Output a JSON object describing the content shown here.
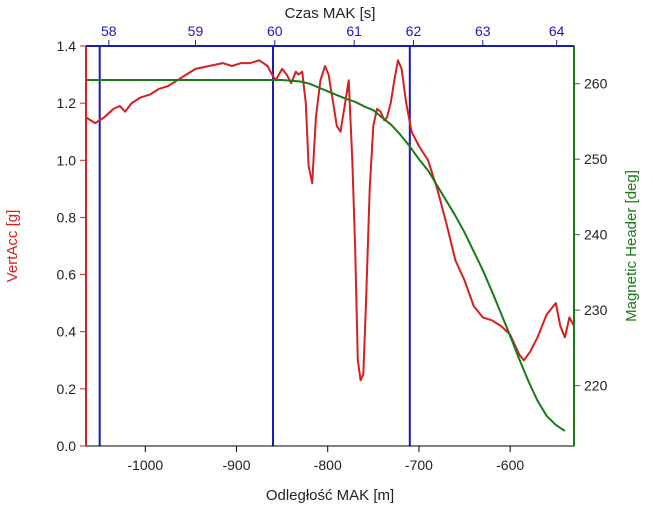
{
  "chart_data": {
    "type": "line",
    "top_axis": {
      "label": "Czas MAK [s]",
      "ticks": [
        58,
        59,
        60,
        61,
        62,
        63,
        64
      ],
      "ticks_at_bottom_x": [
        -1040,
        -945,
        -858,
        -771,
        -706,
        -630,
        -549
      ],
      "color": "#1a1ab4"
    },
    "x_axis": {
      "label": "Odległość MAK [m]",
      "range": [
        -1065,
        -530
      ],
      "ticks": [
        -1000,
        -900,
        -800,
        -700,
        -600
      ]
    },
    "y_left": {
      "label": "VertAcc [g]",
      "range": [
        0,
        1.4
      ],
      "ticks": [
        0.0,
        0.2,
        0.4,
        0.6,
        0.8,
        1.0,
        1.2,
        1.4
      ],
      "tick_labels": [
        "0.0",
        "0.2",
        "0.4",
        "0.6",
        "0.8",
        "1.0",
        "1.2",
        "1.4"
      ],
      "color": "#d42020"
    },
    "y_right": {
      "label": "Magnetic Header [deg]",
      "range": [
        212,
        265
      ],
      "ticks": [
        220,
        230,
        240,
        250,
        260
      ],
      "color": "#1a7a1a"
    },
    "vertical_markers": {
      "x": [
        -1050,
        -860,
        -710
      ],
      "color": "#1a1ab4"
    },
    "series": [
      {
        "axis": "left",
        "color": "#d42020",
        "x": [
          -1065,
          -1055,
          -1045,
          -1035,
          -1028,
          -1022,
          -1015,
          -1005,
          -995,
          -985,
          -975,
          -965,
          -955,
          -945,
          -930,
          -915,
          -905,
          -895,
          -885,
          -875,
          -866,
          -861,
          -857,
          -850,
          -845,
          -840,
          -835,
          -832,
          -828,
          -824,
          -821,
          -817,
          -813,
          -808,
          -803,
          -799,
          -795,
          -790,
          -786,
          -781,
          -777,
          -773,
          -770,
          -767,
          -764,
          -761,
          -758,
          -754,
          -750,
          -746,
          -742,
          -738,
          -735,
          -731,
          -727,
          -723,
          -719,
          -714,
          -708,
          -700,
          -690,
          -680,
          -670,
          -660,
          -650,
          -640,
          -630,
          -620,
          -610,
          -600,
          -590,
          -585,
          -578,
          -570,
          -560,
          -550,
          -545,
          -540,
          -535,
          -530
        ],
        "y": [
          1.15,
          1.13,
          1.15,
          1.18,
          1.19,
          1.17,
          1.2,
          1.22,
          1.23,
          1.25,
          1.26,
          1.28,
          1.3,
          1.32,
          1.33,
          1.34,
          1.33,
          1.34,
          1.34,
          1.35,
          1.33,
          1.3,
          1.28,
          1.32,
          1.3,
          1.27,
          1.31,
          1.3,
          1.31,
          1.2,
          0.98,
          0.92,
          1.15,
          1.28,
          1.33,
          1.3,
          1.22,
          1.12,
          1.1,
          1.2,
          1.28,
          1.0,
          0.7,
          0.3,
          0.23,
          0.25,
          0.5,
          0.9,
          1.12,
          1.18,
          1.17,
          1.14,
          1.15,
          1.2,
          1.28,
          1.35,
          1.32,
          1.2,
          1.1,
          1.05,
          1.0,
          0.9,
          0.78,
          0.65,
          0.58,
          0.49,
          0.45,
          0.44,
          0.42,
          0.39,
          0.32,
          0.3,
          0.33,
          0.38,
          0.46,
          0.5,
          0.42,
          0.38,
          0.45,
          0.42
        ]
      },
      {
        "axis": "right",
        "color": "#1a7a1a",
        "x": [
          -1065,
          -1040,
          -1000,
          -950,
          -900,
          -850,
          -830,
          -820,
          -810,
          -800,
          -790,
          -780,
          -770,
          -760,
          -750,
          -740,
          -730,
          -720,
          -710,
          -700,
          -690,
          -680,
          -670,
          -660,
          -650,
          -640,
          -630,
          -620,
          -610,
          -600,
          -590,
          -580,
          -570,
          -560,
          -550,
          -540
        ],
        "y": [
          260.5,
          260.5,
          260.5,
          260.5,
          260.5,
          260.5,
          260.3,
          260,
          259.5,
          259,
          258.5,
          258,
          257.6,
          257,
          256.5,
          255.5,
          254.5,
          253.2,
          251.7,
          250,
          248.5,
          246.5,
          244.5,
          242.5,
          240.3,
          237.8,
          235.3,
          232.5,
          229.6,
          226.6,
          223.5,
          220.6,
          218,
          216,
          214.8,
          214
        ]
      }
    ]
  }
}
